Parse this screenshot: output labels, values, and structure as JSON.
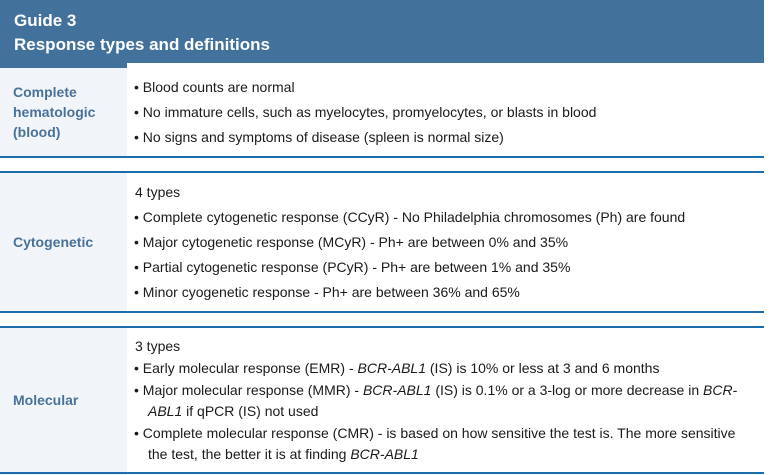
{
  "header": {
    "guide_number": "Guide 3",
    "title": "Response types and definitions"
  },
  "bullet_char": "•",
  "colors": {
    "header_bg": "#42719b",
    "label_text": "#4a7299",
    "rule_line": "#1b6dad",
    "label_bg": "#f1f4f9",
    "body_text": "#1a1a1a"
  },
  "sections": [
    {
      "label": "Complete hematologic (blood)",
      "intro": "",
      "bullets": [
        [
          {
            "t": "Blood counts are normal",
            "i": false
          }
        ],
        [
          {
            "t": "No immature cells, such as myelocytes, promyelocytes, or blasts in blood",
            "i": false
          }
        ],
        [
          {
            "t": "No signs and symptoms of disease (spleen is normal size)",
            "i": false
          }
        ]
      ]
    },
    {
      "label": "Cytogenetic",
      "intro": "4 types",
      "bullets": [
        [
          {
            "t": "Complete cytogenetic response (CCyR) - No Philadelphia chromosomes (Ph) are found",
            "i": false
          }
        ],
        [
          {
            "t": "Major cytogenetic response (MCyR) - Ph+ are between 0% and 35%",
            "i": false
          }
        ],
        [
          {
            "t": "Partial cytogenetic response (PCyR) - Ph+ are between 1% and 35%",
            "i": false
          }
        ],
        [
          {
            "t": "Minor cyogenetic response - Ph+ are between 36% and 65%",
            "i": false
          }
        ]
      ]
    },
    {
      "label": "Molecular",
      "intro": "3 types",
      "bullets": [
        [
          {
            "t": "Early molecular response (EMR) - ",
            "i": false
          },
          {
            "t": "BCR-ABL1",
            "i": true
          },
          {
            "t": " (IS) is 10% or less at 3 and 6 months",
            "i": false
          }
        ],
        [
          {
            "t": "Major molecular response (MMR) - ",
            "i": false
          },
          {
            "t": "BCR-ABL1",
            "i": true
          },
          {
            "t": " (IS) is 0.1% or a 3-log or more decrease in ",
            "i": false
          },
          {
            "t": "BCR-ABL1",
            "i": true
          },
          {
            "t": " if qPCR (IS) not used",
            "i": false
          }
        ],
        [
          {
            "t": "Complete molecular response (CMR) - is based on how sensitive the test is. The more sensitive the test, the better it is at finding ",
            "i": false
          },
          {
            "t": "BCR-ABL1",
            "i": true
          }
        ]
      ]
    }
  ]
}
